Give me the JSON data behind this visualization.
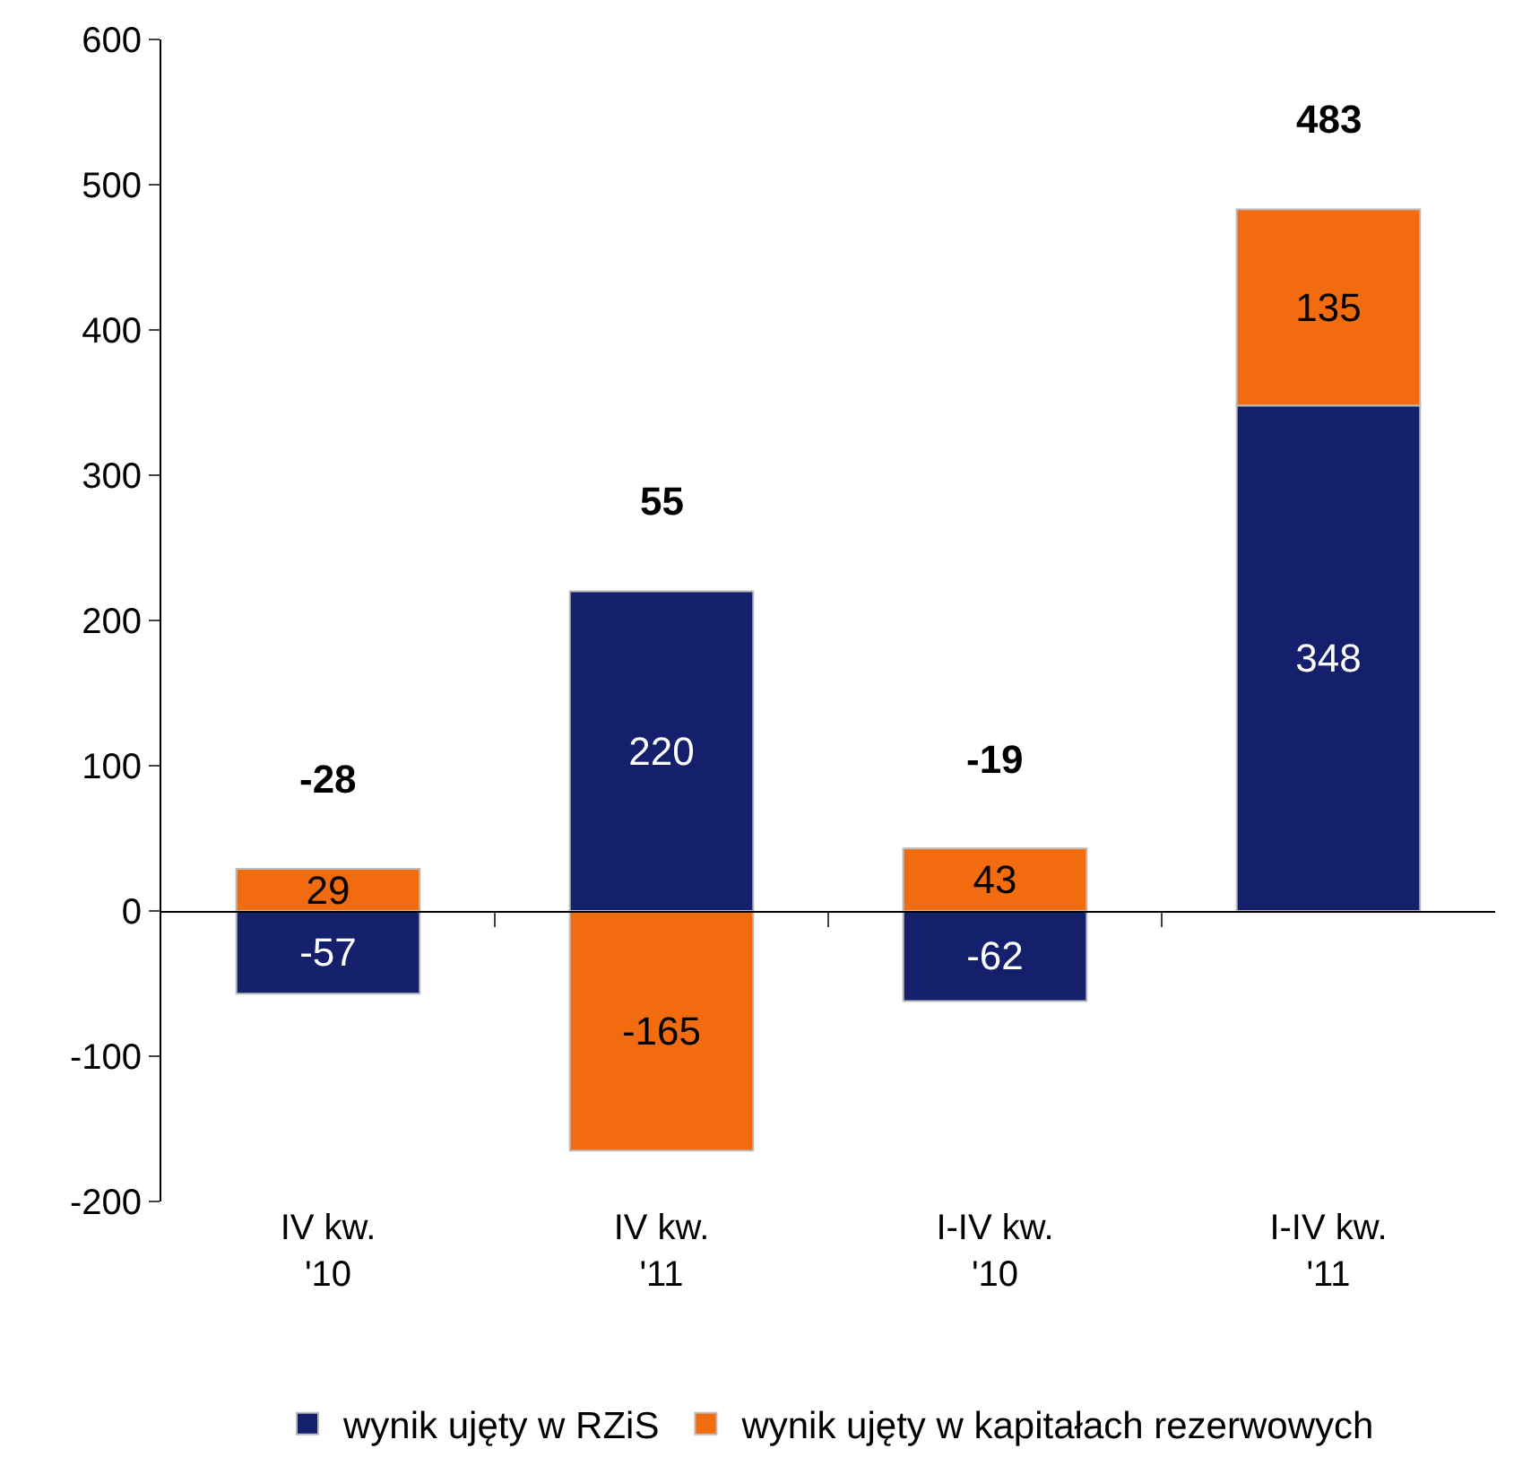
{
  "chart_data": {
    "type": "bar",
    "stacked": true,
    "categories": [
      "IV kw.\n'10",
      "IV kw.\n'11",
      "I-IV kw.\n'10",
      "I-IV kw.\n'11"
    ],
    "series": [
      {
        "name": "wynik ujęty w RZiS",
        "color": "#14206b",
        "values": [
          -57,
          220,
          -62,
          348
        ]
      },
      {
        "name": "wynik ujęty w kapitałach rezerwowych",
        "color": "#f26c0f",
        "values": [
          29,
          -165,
          43,
          135
        ]
      }
    ],
    "totals": [
      "-28",
      "55",
      "-19",
      "483"
    ],
    "data_labels": true,
    "ylim": [
      -200,
      600
    ],
    "yticks": [
      -200,
      -100,
      0,
      100,
      200,
      300,
      400,
      500,
      600
    ],
    "legend": "bottom"
  }
}
